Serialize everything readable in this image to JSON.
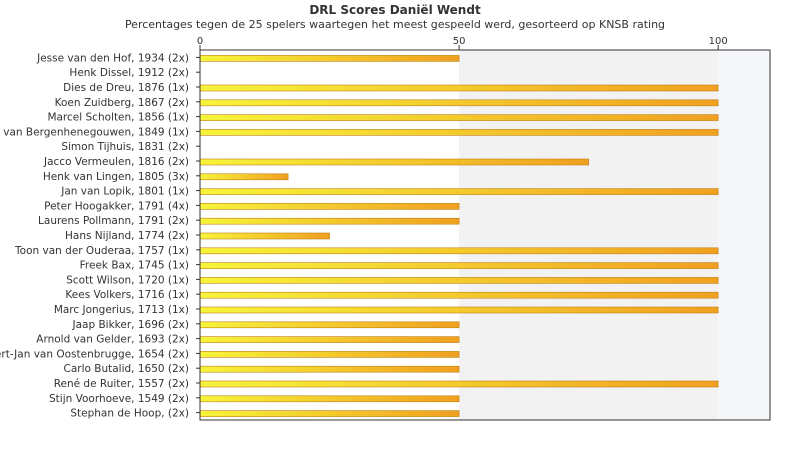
{
  "chart_data": {
    "type": "bar",
    "orientation": "horizontal",
    "title": "DRL Scores Daniël Wendt",
    "subtitle": "Percentages tegen de 25 spelers waartegen het meest gespeeld werd, gesorteerd op KNSB rating",
    "xlabel": "",
    "ylabel": "",
    "xlim": [
      0,
      110
    ],
    "xticks": [
      0,
      50,
      100
    ],
    "grid": false,
    "legend": "none",
    "categories": [
      "Jesse van den Hof, 1934 (2x)",
      "Henk Dissel, 1912 (2x)",
      "Dies de Dreu, 1876 (1x)",
      "Koen Zuidberg, 1867 (2x)",
      "Marcel Scholten, 1856 (1x)",
      "Jan van Bergenhenegouwen, 1849 (1x)",
      "Simon Tijhuis, 1831 (2x)",
      "Jacco Vermeulen, 1816 (2x)",
      "Henk van Lingen, 1805 (3x)",
      "Jan van Lopik, 1801 (1x)",
      "Peter Hoogakker, 1791 (4x)",
      "Laurens Pollmann, 1791 (2x)",
      "Hans Nijland, 1774 (2x)",
      "Toon van der Ouderaa, 1757 (1x)",
      "Freek Bax, 1745 (1x)",
      "Scott Wilson, 1720 (1x)",
      "Kees Volkers, 1716 (1x)",
      "Marc Jongerius, 1713 (1x)",
      "Jaap Bikker, 1696 (2x)",
      "Arnold van Gelder, 1693 (2x)",
      "Gert-Jan van Oostenbrugge, 1654 (2x)",
      "Carlo Butalid, 1650 (2x)",
      "René de Ruiter, 1557 (2x)",
      "Stijn Voorhoeve, 1549 (2x)",
      "Stephan de Hoop,  (2x)"
    ],
    "values": [
      50,
      0,
      100,
      100,
      100,
      100,
      0,
      75,
      17,
      100,
      50,
      50,
      25,
      100,
      100,
      100,
      100,
      100,
      50,
      50,
      50,
      50,
      100,
      50,
      50
    ],
    "colors": {
      "bar_start": "#f7f43a",
      "bar_end": "#f0a020",
      "bar_border": "#c08018",
      "band_light": "#f2f2f2",
      "band_lighter": "#f6f7fa",
      "axis": "#333333"
    }
  }
}
